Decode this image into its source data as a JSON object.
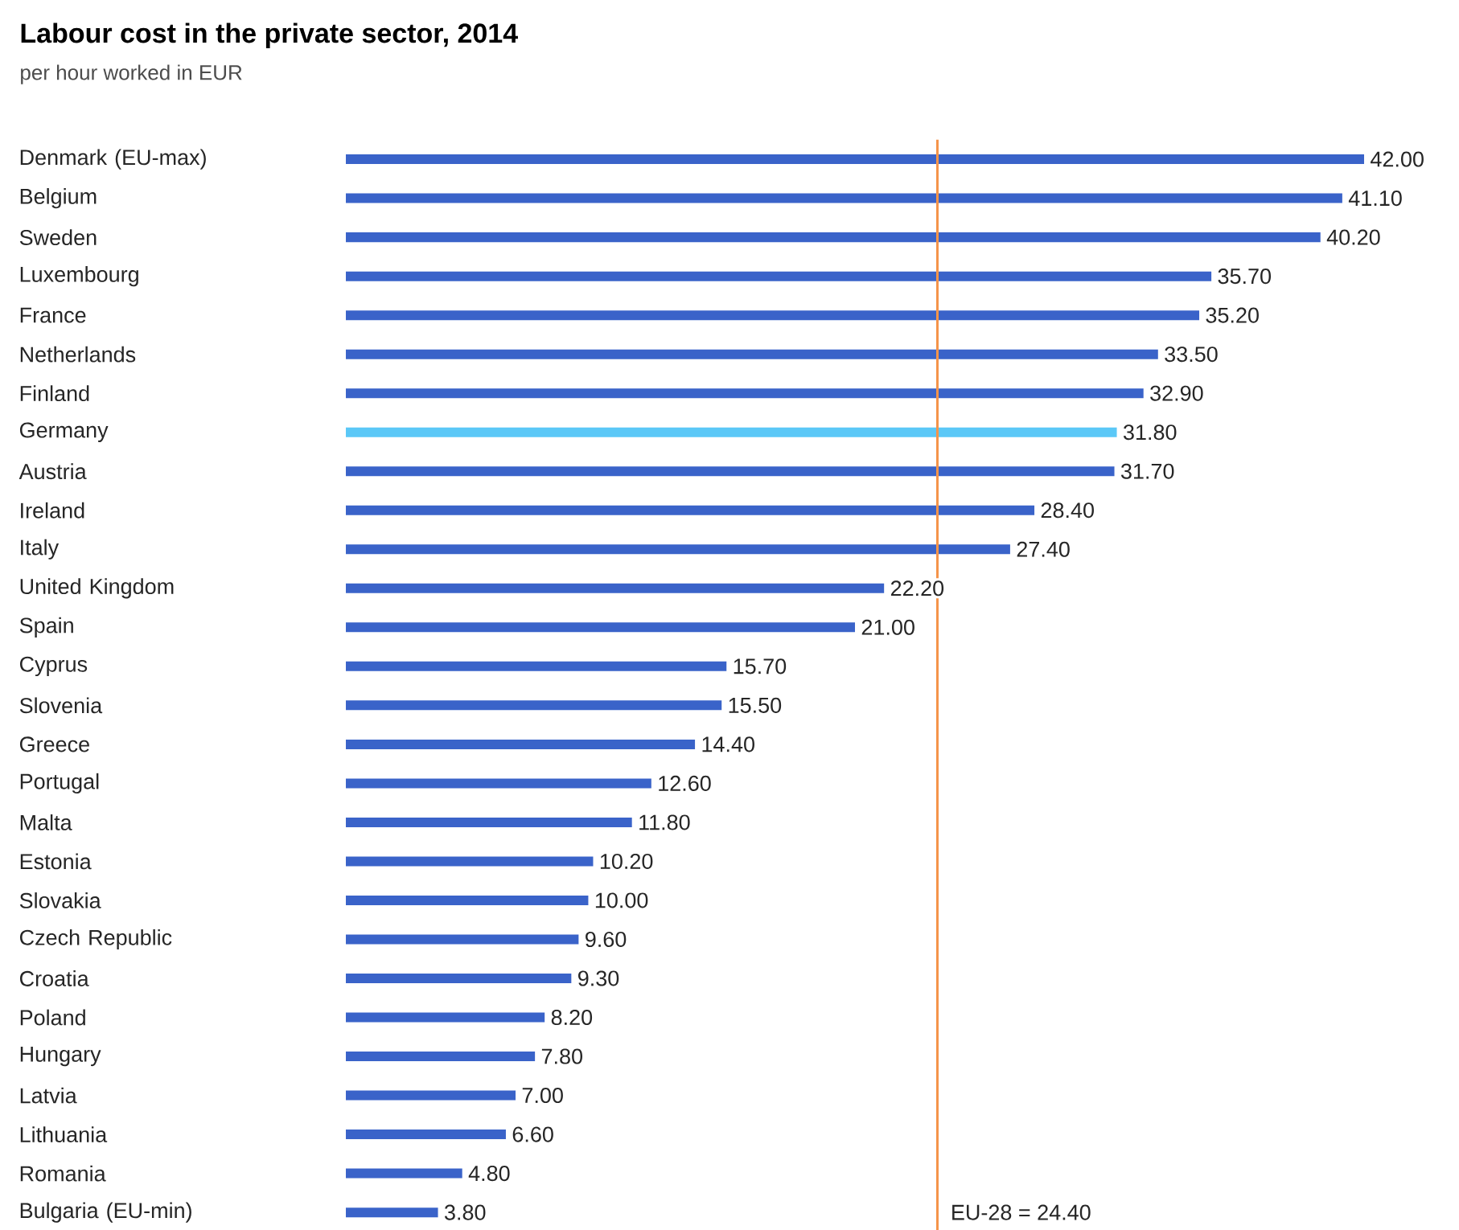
{
  "chart_data": {
    "type": "bar",
    "orientation": "horizontal",
    "title": "Labour cost in the private sector, 2014",
    "subtitle": "per hour worked in EUR",
    "categories": [
      "Denmark (EU-max)",
      "Belgium",
      "Sweden",
      "Luxembourg",
      "France",
      "Netherlands",
      "Finland",
      "Germany",
      "Austria",
      "Ireland",
      "Italy",
      "United Kingdom",
      "Spain",
      "Cyprus",
      "Slovenia",
      "Greece",
      "Portugal",
      "Malta",
      "Estonia",
      "Slovakia",
      "Czech Republic",
      "Croatia",
      "Poland",
      "Hungary",
      "Latvia",
      "Lithuania",
      "Romania",
      "Bulgaria (EU-min)"
    ],
    "values": [
      42.0,
      41.1,
      40.2,
      35.7,
      35.2,
      33.5,
      32.9,
      31.8,
      31.7,
      28.4,
      27.4,
      22.2,
      21.0,
      15.7,
      15.5,
      14.4,
      12.6,
      11.8,
      10.2,
      10.0,
      9.6,
      9.3,
      8.2,
      7.8,
      7.0,
      6.6,
      4.8,
      3.8
    ],
    "value_labels": [
      "42.00",
      "41.10",
      "40.20",
      "35.70",
      "35.20",
      "33.50",
      "32.90",
      "31.80",
      "31.70",
      "28.40",
      "27.40",
      "22.20",
      "21.00",
      "15.70",
      "15.50",
      "14.40",
      "12.60",
      "11.80",
      "10.20",
      "10.00",
      "9.60",
      "9.30",
      "8.20",
      "7.80",
      "7.00",
      "6.60",
      "4.80",
      "3.80"
    ],
    "colors": [
      "#3a63c9",
      "#3a63c9",
      "#3a63c9",
      "#3a63c9",
      "#3a63c9",
      "#3a63c9",
      "#3a63c9",
      "#5bc8f7",
      "#3a63c9",
      "#3a63c9",
      "#3a63c9",
      "#3a63c9",
      "#3a63c9",
      "#3a63c9",
      "#3a63c9",
      "#3a63c9",
      "#3a63c9",
      "#3a63c9",
      "#3a63c9",
      "#3a63c9",
      "#3a63c9",
      "#3a63c9",
      "#3a63c9",
      "#3a63c9",
      "#3a63c9",
      "#3a63c9",
      "#3a63c9",
      "#3a63c9"
    ],
    "xlim": [
      0,
      42
    ],
    "tick_labels": "y",
    "ref_lines": [
      {
        "axis": "x",
        "value": 24.4,
        "label": "EU-28 = 24.40",
        "color": "#f5944a"
      }
    ]
  }
}
